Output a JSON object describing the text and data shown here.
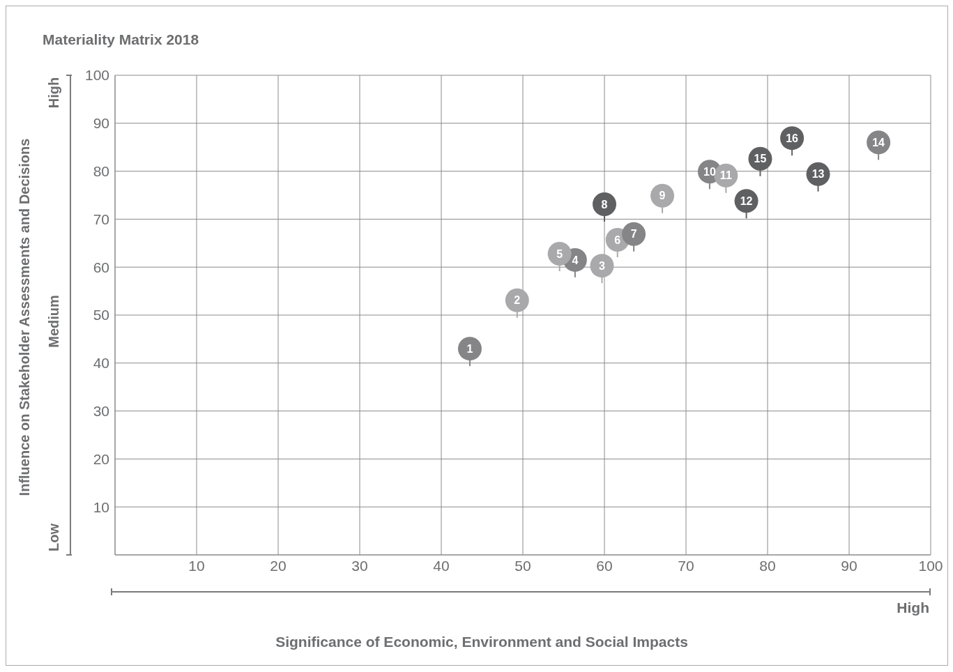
{
  "chart_data": {
    "type": "scatter",
    "title": "Materiality Matrix 2018",
    "xlabel": "Significance of Economic, Environment and Social Impacts",
    "ylabel": "Influence on Stakeholder Assessments and Decisions",
    "x": [
      43.5,
      49.3,
      59.7,
      56.4,
      54.5,
      61.6,
      63.6,
      60.0,
      67.1,
      72.9,
      74.9,
      77.4,
      86.2,
      93.6,
      79.1,
      83.0
    ],
    "values": [
      43.0,
      53.1,
      60.3,
      61.5,
      62.8,
      65.7,
      66.9,
      73.1,
      74.9,
      79.9,
      79.1,
      73.8,
      79.4,
      86.0,
      82.6,
      86.9
    ],
    "colors": [
      "#858587",
      "#a9a9ab",
      "#a9a9ab",
      "#858587",
      "#a9a9ab",
      "#a9a9ab",
      "#858587",
      "#5f6062",
      "#a9a9ab",
      "#858587",
      "#a9a9ab",
      "#5f6062",
      "#5f6062",
      "#858587",
      "#5f6062",
      "#5f6062"
    ],
    "xlim": [
      0,
      100
    ],
    "ylim": [
      0,
      100
    ],
    "xticks": [
      10,
      20,
      30,
      40,
      50,
      60,
      70,
      80,
      90,
      100
    ],
    "yticks": [
      10,
      20,
      30,
      40,
      50,
      60,
      70,
      80,
      90,
      100
    ],
    "grid": true,
    "marker": "circle",
    "annotations": [
      "High",
      "Medium",
      "Low",
      "High",
      {
        "text": "1",
        "x": 43.5,
        "y": 43.0
      },
      {
        "text": "2",
        "x": 49.3,
        "y": 53.1
      },
      {
        "text": "3",
        "x": 59.7,
        "y": 60.3
      },
      {
        "text": "4",
        "x": 56.4,
        "y": 61.5
      },
      {
        "text": "5",
        "x": 54.5,
        "y": 62.8
      },
      {
        "text": "6",
        "x": 61.6,
        "y": 65.7
      },
      {
        "text": "7",
        "x": 63.6,
        "y": 66.9
      },
      {
        "text": "8",
        "x": 60.0,
        "y": 73.1
      },
      {
        "text": "9",
        "x": 67.1,
        "y": 74.9
      },
      {
        "text": "10",
        "x": 72.9,
        "y": 79.9
      },
      {
        "text": "11",
        "x": 74.9,
        "y": 79.1
      },
      {
        "text": "12",
        "x": 77.4,
        "y": 73.8
      },
      {
        "text": "13",
        "x": 86.2,
        "y": 79.4
      },
      {
        "text": "14",
        "x": 93.6,
        "y": 86.0
      },
      {
        "text": "15",
        "x": 79.1,
        "y": 82.6
      },
      {
        "text": "16",
        "x": 83.0,
        "y": 86.9
      }
    ]
  }
}
